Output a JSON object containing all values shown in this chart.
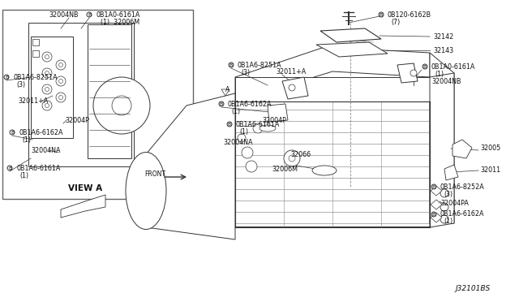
{
  "bg_color": "#ffffff",
  "line_color": "#333333",
  "text_color": "#111111",
  "fig_width": 6.4,
  "fig_height": 3.72,
  "dpi": 100,
  "diagram_label": "J32101BS",
  "view_a_text": "VIEW A",
  "front_arrow_text": "FRONT"
}
